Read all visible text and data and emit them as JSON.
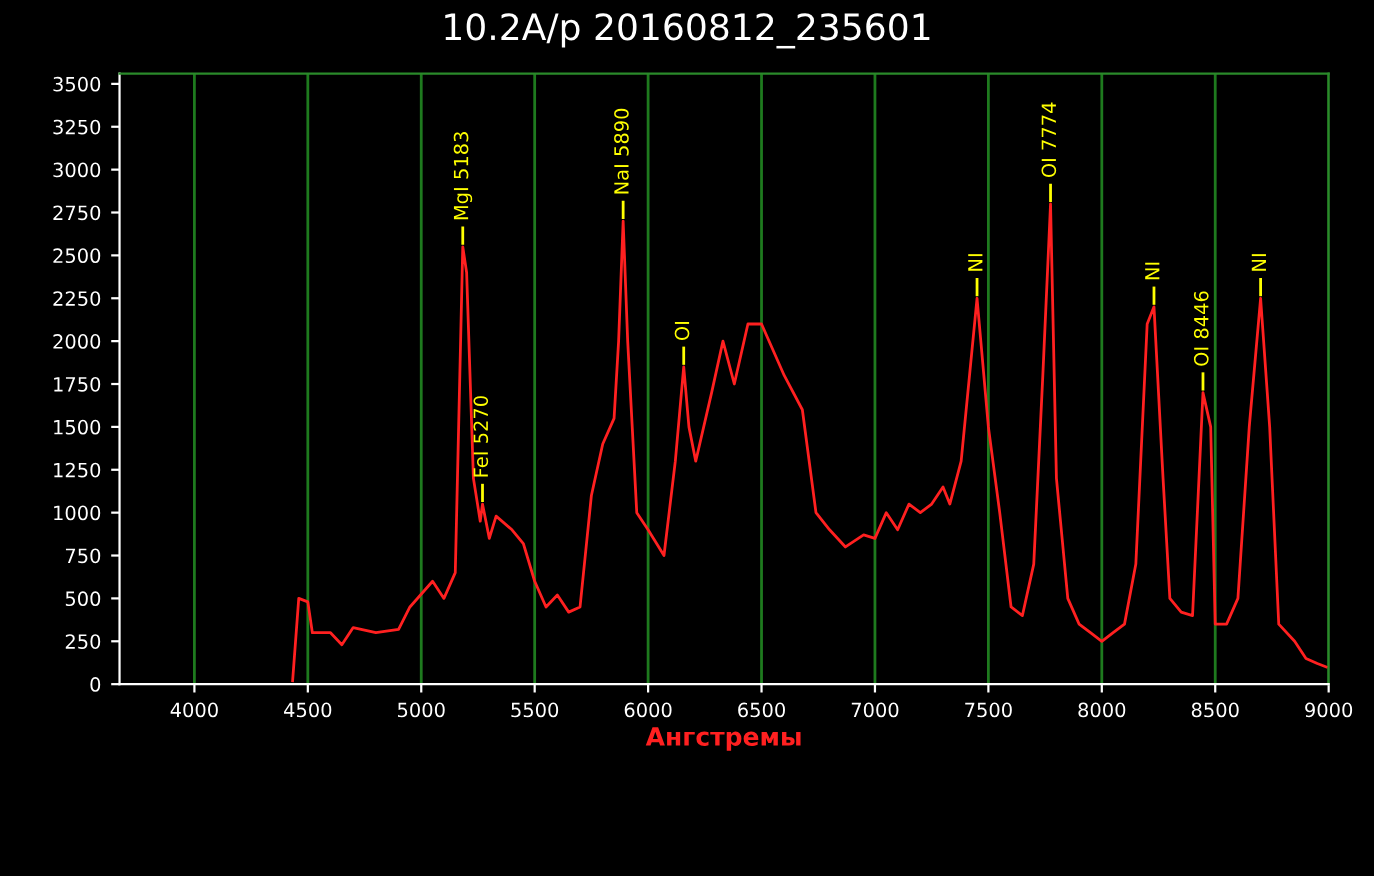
{
  "chart_data": {
    "type": "line",
    "title": "10.2A/p 20160812_235601",
    "xlabel": "Ангстремы",
    "x": [
      4433,
      4460,
      4500,
      4520,
      4600,
      4650,
      4700,
      4800,
      4900,
      4950,
      5050,
      5100,
      5150,
      5170,
      5183,
      5200,
      5230,
      5260,
      5270,
      5300,
      5330,
      5400,
      5450,
      5500,
      5550,
      5600,
      5650,
      5700,
      5750,
      5800,
      5850,
      5870,
      5890,
      5910,
      5950,
      6000,
      6070,
      6120,
      6157,
      6180,
      6210,
      6280,
      6330,
      6380,
      6440,
      6500,
      6550,
      6600,
      6680,
      6740,
      6800,
      6870,
      6950,
      7000,
      7050,
      7100,
      7150,
      7200,
      7250,
      7300,
      7330,
      7380,
      7450,
      7500,
      7550,
      7600,
      7650,
      7700,
      7740,
      7774,
      7800,
      7850,
      7900,
      7950,
      8000,
      8050,
      8100,
      8150,
      8200,
      8230,
      8270,
      8300,
      8350,
      8400,
      8446,
      8480,
      8500,
      8550,
      8600,
      8650,
      8700,
      8740,
      8780,
      8850,
      8900,
      8950,
      8990
    ],
    "series": [
      {
        "color": "#ff2020",
        "values": [
          20,
          500,
          480,
          300,
          300,
          230,
          330,
          300,
          320,
          450,
          600,
          500,
          650,
          1800,
          2550,
          2400,
          1200,
          950,
          1050,
          850,
          980,
          900,
          820,
          600,
          450,
          520,
          420,
          450,
          1100,
          1400,
          1550,
          2000,
          2700,
          2000,
          1000,
          900,
          750,
          1300,
          1850,
          1500,
          1300,
          1700,
          2000,
          1750,
          2100,
          2100,
          1950,
          1800,
          1600,
          1000,
          900,
          800,
          870,
          850,
          1000,
          900,
          1050,
          1000,
          1050,
          1150,
          1050,
          1300,
          2250,
          1500,
          1000,
          450,
          400,
          700,
          1800,
          2800,
          1200,
          500,
          350,
          300,
          250,
          300,
          350,
          700,
          2100,
          2200,
          1200,
          500,
          420,
          400,
          1700,
          1500,
          350,
          350,
          500,
          1500,
          2250,
          1500,
          350,
          250,
          150,
          120,
          100
        ]
      }
    ],
    "annotations": [
      {
        "text": "MgI 5183",
        "x": 5183,
        "y": 2550
      },
      {
        "text": "FeI 5270",
        "x": 5270,
        "y": 1050
      },
      {
        "text": "NaI 5890",
        "x": 5890,
        "y": 2700
      },
      {
        "text": "OI",
        "x": 6157,
        "y": 1850
      },
      {
        "text": "NI",
        "x": 7450,
        "y": 2250
      },
      {
        "text": "OI 7774",
        "x": 7774,
        "y": 2800
      },
      {
        "text": "NI",
        "x": 8230,
        "y": 2200
      },
      {
        "text": "OI 8446",
        "x": 8446,
        "y": 1700
      },
      {
        "text": "NI",
        "x": 8700,
        "y": 2250
      }
    ],
    "xlim": [
      3670,
      9000
    ],
    "xticks": [
      4000,
      4500,
      5000,
      5500,
      6000,
      6500,
      7000,
      7500,
      8000,
      8500,
      9000
    ],
    "ylim": [
      0,
      3560
    ],
    "yticks": [
      0,
      250,
      500,
      750,
      1000,
      1250,
      1500,
      1750,
      2000,
      2250,
      2500,
      2750,
      3000,
      3250,
      3500
    ],
    "grid": "x",
    "marker": "none",
    "line_style": "solid",
    "legend": false
  }
}
